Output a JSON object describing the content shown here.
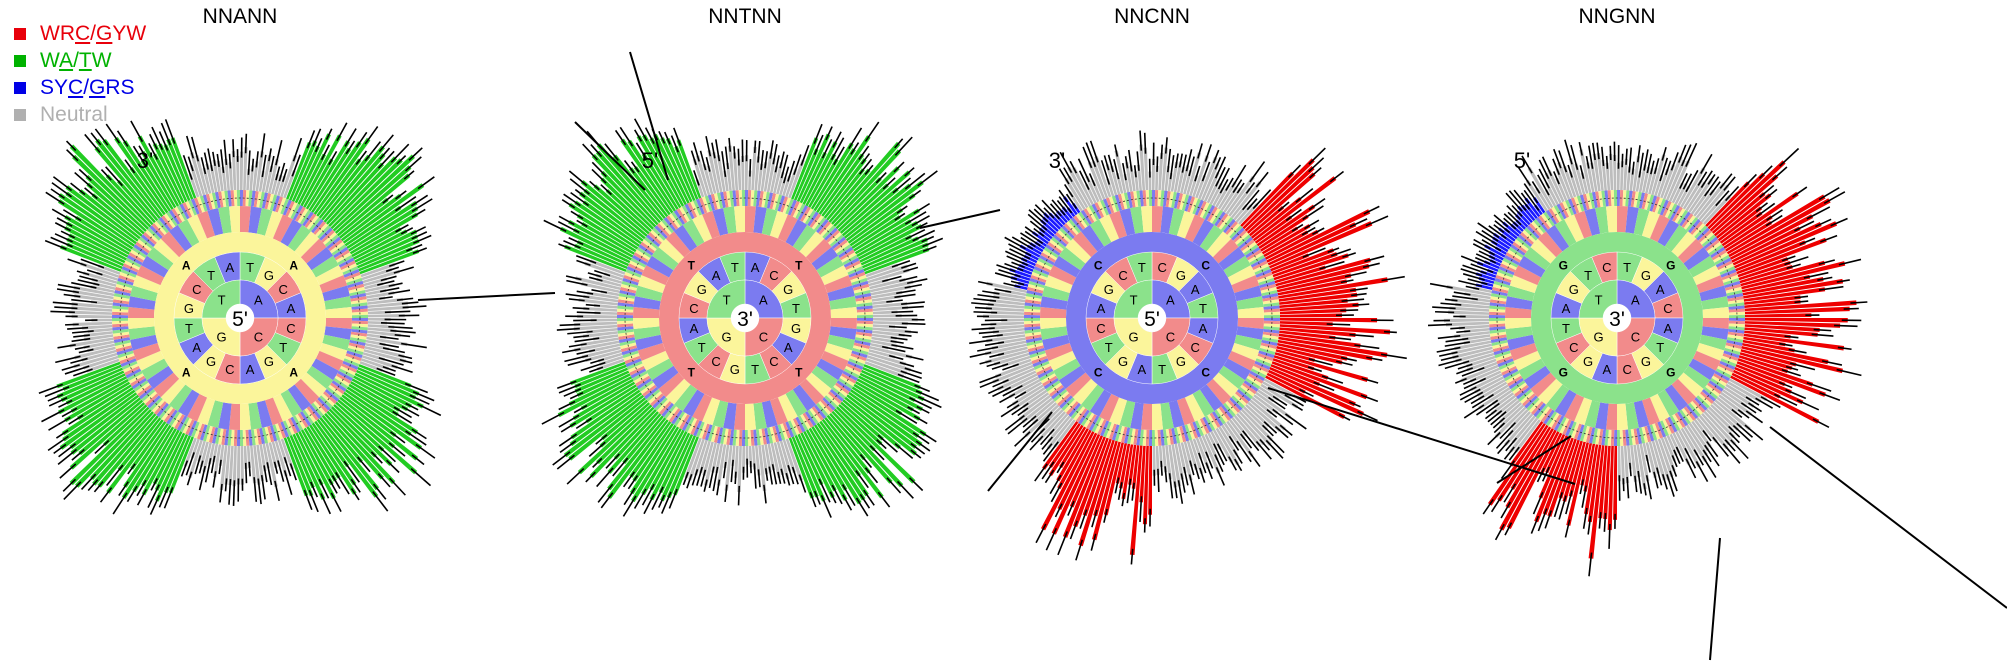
{
  "legend": {
    "items": [
      {
        "key": "wrc",
        "parts": [
          {
            "t": "WR"
          },
          {
            "t": "C",
            "u": true
          },
          {
            "t": "/"
          },
          {
            "t": "G",
            "u": true
          },
          {
            "t": "YW"
          }
        ],
        "color": "#e8000b"
      },
      {
        "key": "wa",
        "parts": [
          {
            "t": "W"
          },
          {
            "t": "A",
            "u": true
          },
          {
            "t": "/"
          },
          {
            "t": "T",
            "u": true
          },
          {
            "t": "W"
          }
        ],
        "color": "#00b200"
      },
      {
        "key": "syc",
        "parts": [
          {
            "t": "SY"
          },
          {
            "t": "C",
            "u": true
          },
          {
            "t": "/"
          },
          {
            "t": "G",
            "u": true
          },
          {
            "t": "RS"
          }
        ],
        "color": "#0000e6"
      },
      {
        "key": "neutral",
        "parts": [
          {
            "t": "Neutral"
          }
        ],
        "color": "#b0b0b0"
      }
    ]
  },
  "colors": {
    "A": "#7b7bf0",
    "C": "#f28b8b",
    "G": "#fbf59b",
    "T": "#8be28b",
    "wrc": "#ee0000",
    "wa": "#22cc22",
    "syc": "#1a1aff",
    "neutral": "#bdbdbd",
    "whisker": "#000000"
  },
  "chart_data": [
    {
      "type": "radial-bar",
      "title": "NNANN",
      "center_label": "5'",
      "end_label": "3'",
      "center_base": "A",
      "ring1": [
        "T",
        "G",
        "C",
        "A",
        "C",
        "T",
        "G",
        "A",
        "C",
        "G",
        "A",
        "T",
        "G",
        "C",
        "T",
        "A"
      ],
      "ring2_corner": "A",
      "hotspot": "wa"
    },
    {
      "type": "radial-bar",
      "title": "NNTNN",
      "center_label": "3'",
      "end_label": "5'",
      "center_base": "C",
      "ring1": [
        "A",
        "C",
        "G",
        "T",
        "G",
        "A",
        "C",
        "T",
        "G",
        "C",
        "T",
        "A",
        "C",
        "G",
        "A",
        "T"
      ],
      "ring2_corner": "T",
      "hotspot": "wa"
    },
    {
      "type": "radial-bar",
      "title": "NNCNN",
      "center_label": "5'",
      "end_label": "3'",
      "center_base": "A",
      "ring1": [
        "C",
        "G",
        "A",
        "T",
        "A",
        "C",
        "G",
        "T",
        "A",
        "G",
        "T",
        "C",
        "A",
        "G",
        "C",
        "T"
      ],
      "ring2_corner": "C",
      "hotspot": "wrc",
      "secondary": "syc"
    },
    {
      "type": "radial-bar",
      "title": "NNGNN",
      "center_label": "3'",
      "end_label": "5'",
      "center_base": "T",
      "ring1": [
        "T",
        "G",
        "A",
        "C",
        "A",
        "T",
        "G",
        "C",
        "A",
        "G",
        "C",
        "T",
        "A",
        "G",
        "T",
        "C"
      ],
      "ring2_corner": "G",
      "hotspot": "wrc",
      "secondary": "syc"
    }
  ]
}
